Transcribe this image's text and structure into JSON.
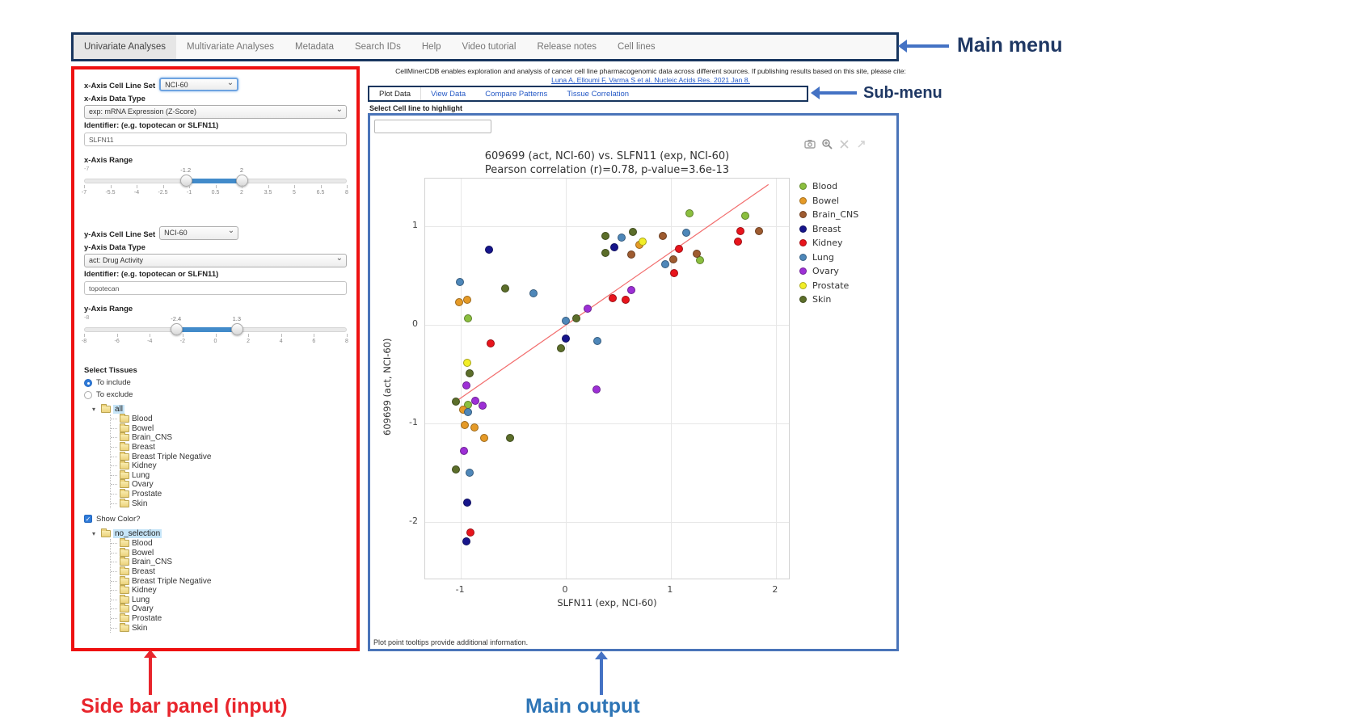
{
  "annotations": {
    "main_menu_label": "Main menu",
    "sub_menu_label": "Sub-menu",
    "sidebar_label": "Side bar panel (input)",
    "main_output_label": "Main output"
  },
  "main_menu": {
    "items": [
      "Univariate Analyses",
      "Multivariate Analyses",
      "Metadata",
      "Search IDs",
      "Help",
      "Video tutorial",
      "Release notes",
      "Cell lines"
    ],
    "active_index": 0
  },
  "citation": {
    "text": "CellMinerCDB enables exploration and analysis of cancer cell line pharmacogenomic data across different sources. If publishing results based on this site, please cite:",
    "link_text": "Luna A, Elloumi F, Varma S et al. Nucleic Acids Res. 2021 Jan 8."
  },
  "sub_menu": {
    "tabs": [
      "Plot Data",
      "View Data",
      "Compare Patterns",
      "Tissue Correlation"
    ],
    "active_index": 0
  },
  "sidebar": {
    "x_axis": {
      "cell_line_set_label": "x-Axis Cell Line Set",
      "cell_line_set_value": "NCI-60",
      "data_type_label": "x-Axis Data Type",
      "data_type_value": "exp: mRNA Expression (Z-Score)",
      "identifier_label": "Identifier: (e.g. topotecan or SLFN11)",
      "identifier_value": "SLFN11",
      "range_label": "x-Axis Range",
      "range_min_label": "-7",
      "handle_values": [
        "-1.2",
        "2"
      ],
      "handle_pcts": [
        38.7,
        60
      ],
      "tick_labels": [
        "-7",
        "-5.5",
        "-4",
        "-2.5",
        "-1",
        "0.5",
        "2",
        "3.5",
        "5",
        "6.5",
        "8"
      ]
    },
    "y_axis": {
      "cell_line_set_label": "y-Axis Cell Line Set",
      "cell_line_set_value": "NCI-60",
      "data_type_label": "y-Axis Data Type",
      "data_type_value": "act: Drug Activity",
      "identifier_label": "Identifier: (e.g. topotecan or SLFN11)",
      "identifier_value": "topotecan",
      "range_label": "y-Axis Range",
      "range_min_label": "-8",
      "handle_values": [
        "-2.4",
        "1.3"
      ],
      "handle_pcts": [
        35,
        58.1
      ],
      "tick_labels": [
        "-8",
        "-6",
        "-4",
        "-2",
        "0",
        "2",
        "4",
        "6",
        "8"
      ]
    },
    "tissues": {
      "label": "Select Tissues",
      "radio_include": "To include",
      "radio_exclude": "To exclude",
      "include_selected": true,
      "tree_root": "all",
      "tree_items": [
        "Blood",
        "Bowel",
        "Brain_CNS",
        "Breast",
        "Breast Triple Negative",
        "Kidney",
        "Lung",
        "Ovary",
        "Prostate",
        "Skin"
      ]
    },
    "color": {
      "show_color_label": "Show Color?",
      "checked": true,
      "tree_root": "no_selection",
      "tree_items": [
        "Blood",
        "Bowel",
        "Brain_CNS",
        "Breast",
        "Breast Triple Negative",
        "Kidney",
        "Lung",
        "Ovary",
        "Prostate",
        "Skin"
      ]
    }
  },
  "output": {
    "highlight_label": "Select Cell line to highlight",
    "highlight_value": "",
    "footer_note": "Plot point tooltips provide additional information."
  },
  "chart_data": {
    "type": "scatter",
    "title_line1": "609699 (act, NCI-60) vs. SLFN11 (exp, NCI-60)",
    "title_line2": "Pearson correlation (r)=0.78, p-value=3.6e-13",
    "xlabel": "SLFN11 (exp, NCI-60)",
    "ylabel": "609699 (act, NCI-60)",
    "xlim": [
      -1.34,
      2.14
    ],
    "ylim": [
      -2.59,
      1.48
    ],
    "x_ticks": [
      -1,
      0,
      1,
      2
    ],
    "y_ticks": [
      -2,
      -1,
      0,
      1
    ],
    "grid": true,
    "legend_position": "right",
    "trendline": {
      "color": "#f26d6d",
      "x1": -1.05,
      "y1": -0.78,
      "x2": 1.93,
      "y2": 1.42
    },
    "series": [
      {
        "name": "Blood",
        "color": "#8bbf3f",
        "points": [
          [
            -0.93,
            0.06
          ],
          [
            1.18,
            1.13
          ],
          [
            1.28,
            0.65
          ],
          [
            1.71,
            1.1
          ],
          [
            -0.93,
            -0.81
          ]
        ]
      },
      {
        "name": "Bowel",
        "color": "#e59a27",
        "points": [
          [
            -1.02,
            0.23
          ],
          [
            -0.94,
            0.25
          ],
          [
            0.7,
            0.81
          ],
          [
            -0.98,
            -0.86
          ],
          [
            -0.96,
            -1.02
          ],
          [
            -0.87,
            -1.04
          ],
          [
            -0.78,
            -1.15
          ]
        ]
      },
      {
        "name": "Brain_CNS",
        "color": "#9e5b30",
        "points": [
          [
            0.62,
            0.71
          ],
          [
            0.92,
            0.9
          ],
          [
            1.02,
            0.66
          ],
          [
            1.25,
            0.72
          ],
          [
            1.84,
            0.95
          ]
        ]
      },
      {
        "name": "Breast",
        "color": "#16158b",
        "points": [
          [
            -0.73,
            0.76
          ],
          [
            0.0,
            -0.14
          ],
          [
            0.46,
            0.78
          ],
          [
            -0.94,
            -1.8
          ],
          [
            -0.95,
            -2.2
          ]
        ]
      },
      {
        "name": "Kidney",
        "color": "#e8141c",
        "points": [
          [
            -0.72,
            -0.19
          ],
          [
            0.45,
            0.27
          ],
          [
            0.57,
            0.25
          ],
          [
            1.03,
            0.52
          ],
          [
            1.08,
            0.77
          ],
          [
            1.64,
            0.84
          ],
          [
            1.66,
            0.95
          ],
          [
            -0.91,
            -2.11
          ]
        ]
      },
      {
        "name": "Lung",
        "color": "#4e87b9",
        "points": [
          [
            -1.01,
            0.43
          ],
          [
            -0.31,
            0.32
          ],
          [
            0.0,
            0.04
          ],
          [
            0.3,
            -0.17
          ],
          [
            0.53,
            0.88
          ],
          [
            0.95,
            0.61
          ],
          [
            1.15,
            0.93
          ],
          [
            -0.93,
            -0.89
          ],
          [
            -0.92,
            -1.5
          ]
        ]
      },
      {
        "name": "Ovary",
        "color": "#9d2fd6",
        "points": [
          [
            0.21,
            0.16
          ],
          [
            0.62,
            0.35
          ],
          [
            -0.95,
            -0.62
          ],
          [
            0.29,
            -0.66
          ],
          [
            -0.86,
            -0.77
          ],
          [
            -0.79,
            -0.82
          ],
          [
            -0.97,
            -1.28
          ]
        ]
      },
      {
        "name": "Prostate",
        "color": "#f2ee27",
        "points": [
          [
            0.73,
            0.84
          ],
          [
            -0.94,
            -0.39
          ]
        ]
      },
      {
        "name": "Skin",
        "color": "#5c6e2a",
        "points": [
          [
            -0.58,
            0.37
          ],
          [
            0.1,
            0.06
          ],
          [
            -0.05,
            -0.24
          ],
          [
            0.38,
            0.9
          ],
          [
            0.38,
            0.73
          ],
          [
            0.64,
            0.94
          ],
          [
            -0.92,
            -0.49
          ],
          [
            -1.05,
            -0.78
          ],
          [
            -0.53,
            -1.15
          ],
          [
            -1.05,
            -1.47
          ]
        ]
      }
    ]
  }
}
